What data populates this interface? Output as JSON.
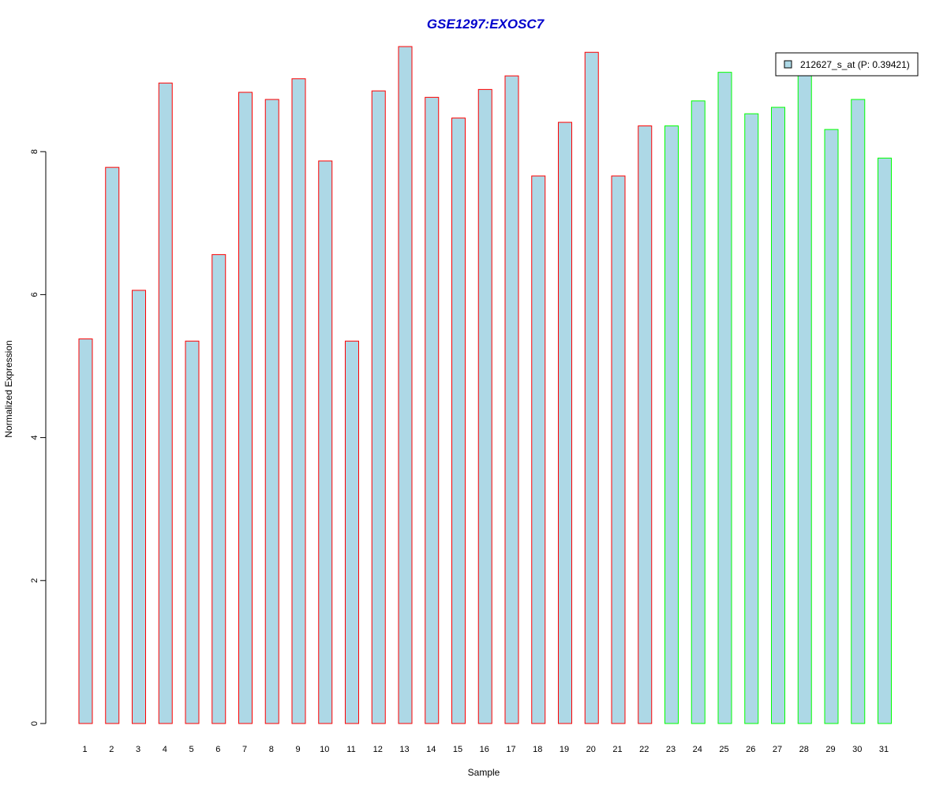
{
  "chart_data": {
    "type": "bar",
    "title": "GSE1297:EXOSC7",
    "xlabel": "Sample",
    "ylabel": "Normalized Expression",
    "ylim": [
      0,
      9.5
    ],
    "yticks": [
      0,
      2,
      4,
      6,
      8
    ],
    "grid": false,
    "legend": {
      "position": "top-right",
      "entries": [
        {
          "label": "212627_s_at (P: 0.39421)",
          "fill": "#add8e6",
          "stroke": "#000000"
        }
      ]
    },
    "categories": [
      "1",
      "2",
      "3",
      "4",
      "5",
      "6",
      "7",
      "8",
      "9",
      "10",
      "11",
      "12",
      "13",
      "14",
      "15",
      "16",
      "17",
      "18",
      "19",
      "20",
      "21",
      "22",
      "23",
      "24",
      "25",
      "26",
      "27",
      "28",
      "29",
      "30",
      "31"
    ],
    "values": [
      5.38,
      7.78,
      6.06,
      8.96,
      5.35,
      6.56,
      8.83,
      8.73,
      9.02,
      7.87,
      5.35,
      8.85,
      9.47,
      8.76,
      8.47,
      8.87,
      9.06,
      7.66,
      8.41,
      9.39,
      7.66,
      8.36,
      8.36,
      8.71,
      9.11,
      8.53,
      8.62,
      9.15,
      8.31,
      8.73,
      7.91
    ],
    "fill_color": "#add8e6",
    "group_colors": {
      "red": "#ff0000",
      "green": "#00ff00"
    },
    "groups": [
      "red",
      "red",
      "red",
      "red",
      "red",
      "red",
      "red",
      "red",
      "red",
      "red",
      "red",
      "red",
      "red",
      "red",
      "red",
      "red",
      "red",
      "red",
      "red",
      "red",
      "red",
      "red",
      "green",
      "green",
      "green",
      "green",
      "green",
      "green",
      "green",
      "green",
      "green"
    ],
    "title_color": "#0000cc"
  }
}
